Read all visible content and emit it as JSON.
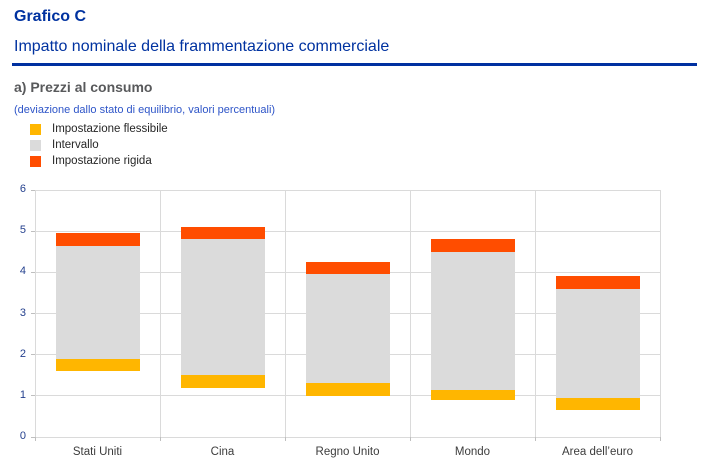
{
  "header": {
    "kicker": "Grafico C",
    "title": "Impatto nominale della frammentazione commerciale"
  },
  "panel": {
    "title": "a) Prezzi al consumo",
    "note": "(deviazione dallo stato di equilibrio, valori percentuali)"
  },
  "legend": {
    "items": [
      {
        "label": "Impostazione flessibile",
        "color_key": "flexible"
      },
      {
        "label": "Intervallo",
        "color_key": "range"
      },
      {
        "label": "Impostazione rigida",
        "color_key": "rigid"
      }
    ]
  },
  "colors": {
    "accent_blue": "#0032A0",
    "note_blue": "#2E55C8",
    "flexible": "#FFB600",
    "range": "#DBDBDB",
    "rigid": "#FF4D00",
    "grid": "#DADADA",
    "y_label": "#24408E",
    "x_label": "#3C3C3C"
  },
  "chart_data": {
    "type": "bar",
    "subtype": "floating-stacked-range",
    "title": "a) Prezzi al consumo",
    "note": "(deviazione dallo stato di equilibrio, valori percentuali)",
    "categories": [
      "Stati Uniti",
      "Cina",
      "Regno Unito",
      "Mondo",
      "Area dell’euro"
    ],
    "series": [
      {
        "name": "Impostazione flessibile",
        "color_key": "flexible",
        "ranges": [
          [
            1.6,
            1.9
          ],
          [
            1.2,
            1.5
          ],
          [
            1.0,
            1.3
          ],
          [
            0.9,
            1.15
          ],
          [
            0.65,
            0.95
          ]
        ]
      },
      {
        "name": "Intervallo",
        "color_key": "range",
        "ranges": [
          [
            1.9,
            4.65
          ],
          [
            1.5,
            4.8
          ],
          [
            1.3,
            3.95
          ],
          [
            1.15,
            4.5
          ],
          [
            0.95,
            3.6
          ]
        ]
      },
      {
        "name": "Impostazione rigida",
        "color_key": "rigid",
        "ranges": [
          [
            4.65,
            4.95
          ],
          [
            4.8,
            5.1
          ],
          [
            3.95,
            4.25
          ],
          [
            4.5,
            4.8
          ],
          [
            3.6,
            3.9
          ]
        ]
      }
    ],
    "xlabel": "",
    "ylabel": "",
    "ylim": [
      0,
      6
    ],
    "yticks": [
      0,
      1,
      2,
      3,
      4,
      5,
      6
    ],
    "grid": true,
    "legend_position": "top-left"
  }
}
